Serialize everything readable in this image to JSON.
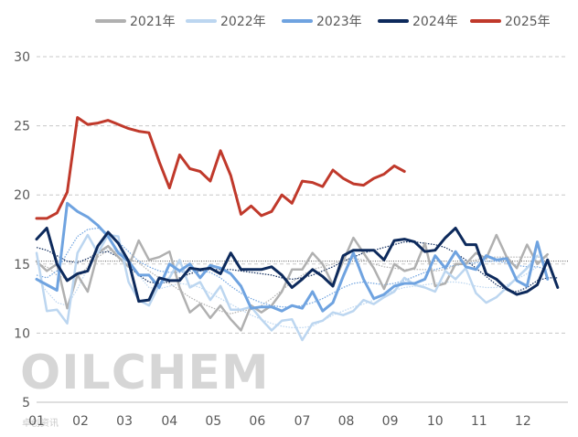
{
  "chart_data": {
    "type": "line",
    "title": "",
    "xlabel": "",
    "ylabel": "",
    "ylim": [
      5,
      30
    ],
    "y_ticks": [
      5,
      10,
      15,
      20,
      25,
      30
    ],
    "x_range": [
      1,
      53
    ],
    "x_ticks": [
      {
        "label": "01",
        "week": 1
      },
      {
        "label": "02",
        "week": 5.3
      },
      {
        "label": "03",
        "week": 9.6
      },
      {
        "label": "04",
        "week": 14
      },
      {
        "label": "05",
        "week": 18.3
      },
      {
        "label": "06",
        "week": 22.6
      },
      {
        "label": "07",
        "week": 27
      },
      {
        "label": "08",
        "week": 31.3
      },
      {
        "label": "09",
        "week": 35.6
      },
      {
        "label": "10",
        "week": 40
      },
      {
        "label": "11",
        "week": 44.3
      },
      {
        "label": "12",
        "week": 48.6
      }
    ],
    "reference_line": 15.2,
    "series": [
      {
        "name": "2021年",
        "color": "#b0b0b0",
        "width": 2.5,
        "values": [
          15.2,
          14.5,
          15.0,
          11.8,
          14.2,
          13.0,
          15.8,
          16.3,
          15.5,
          14.8,
          16.7,
          15.3,
          15.5,
          15.9,
          13.3,
          11.5,
          12.1,
          11.1,
          12.0,
          11.0,
          10.2,
          12.0,
          11.5,
          12.0,
          13.0,
          14.6,
          14.6,
          15.8,
          15.0,
          13.5,
          15.2,
          16.9,
          15.8,
          14.7,
          13.2,
          15.0,
          14.5,
          14.7,
          16.5,
          13.4,
          13.6,
          15.0,
          15.0,
          15.8,
          15.4,
          17.1,
          15.5,
          14.7,
          16.4,
          15.0,
          15.7
        ]
      },
      {
        "name": "2022年",
        "color": "#bcd6f0",
        "width": 2.5,
        "values": [
          15.8,
          11.6,
          11.7,
          10.7,
          15.8,
          17.1,
          15.8,
          17.1,
          17.0,
          13.7,
          12.4,
          12.0,
          13.5,
          14.0,
          15.3,
          13.3,
          13.7,
          12.4,
          13.4,
          11.7,
          11.7,
          11.9,
          11.0,
          10.2,
          10.9,
          11.0,
          9.5,
          10.7,
          10.9,
          11.5,
          11.3,
          11.6,
          12.4,
          12.1,
          12.6,
          13.0,
          14.0,
          13.5,
          13.3,
          13.0,
          14.5,
          13.9,
          14.7,
          12.9,
          12.2,
          12.6,
          13.3,
          14.0,
          14.7,
          15.6
        ]
      },
      {
        "name": "2023年",
        "color": "#6fa3e0",
        "width": 3,
        "values": [
          13.9,
          13.5,
          13.1,
          19.4,
          18.8,
          18.4,
          17.8,
          17.0,
          15.8,
          15.2,
          14.2,
          14.2,
          13.3,
          15.0,
          14.5,
          15.0,
          14.0,
          14.9,
          14.7,
          14.3,
          13.4,
          11.8,
          11.9,
          11.9,
          11.6,
          12.0,
          11.8,
          13.0,
          11.6,
          12.2,
          14.1,
          15.8,
          13.9,
          12.5,
          12.8,
          13.4,
          13.6,
          13.6,
          13.9,
          15.6,
          14.7,
          15.9,
          14.8,
          14.6,
          15.6,
          15.3,
          15.4,
          13.8,
          13.4,
          16.6,
          13.9
        ]
      },
      {
        "name": "2024年",
        "color": "#0d2a5c",
        "width": 3,
        "values": [
          16.8,
          17.6,
          15.0,
          13.8,
          14.3,
          14.5,
          16.3,
          17.3,
          16.5,
          15.2,
          12.3,
          12.4,
          14.0,
          13.8,
          13.8,
          14.7,
          14.6,
          14.7,
          14.3,
          15.8,
          14.6,
          14.6,
          14.6,
          14.8,
          14.2,
          13.3,
          13.9,
          14.6,
          14.1,
          13.4,
          15.6,
          16.0,
          16.0,
          16.0,
          15.3,
          16.7,
          16.8,
          16.6,
          15.9,
          16.0,
          16.9,
          17.6,
          16.4,
          16.4,
          14.3,
          13.9,
          13.2,
          12.8,
          13.0,
          13.5,
          15.3,
          13.3
        ]
      },
      {
        "name": "2025年",
        "color": "#c0392b",
        "width": 3,
        "values": [
          18.3,
          18.3,
          18.7,
          20.2,
          25.6,
          25.1,
          25.2,
          25.4,
          25.1,
          24.8,
          24.6,
          24.5,
          22.4,
          20.5,
          22.9,
          21.9,
          21.7,
          21.0,
          23.2,
          21.4,
          18.6,
          19.2,
          18.5,
          18.8,
          20.0,
          19.4,
          21.0,
          20.9,
          20.6,
          21.8,
          21.2,
          20.8,
          20.7,
          21.2,
          21.5,
          22.1,
          21.7
        ]
      }
    ],
    "trendlines": [
      {
        "color": "#b0b0b0",
        "values": [
          15.0,
          14.8,
          14.2,
          13.9,
          14.0,
          14.8,
          15.5,
          16.0,
          15.9,
          15.4,
          15.1,
          14.5,
          14.0,
          13.6,
          13.1,
          12.6,
          12.2,
          11.9,
          11.6,
          11.4,
          11.6,
          11.7,
          12.0,
          12.5,
          13.1,
          13.7,
          14.2,
          14.6,
          14.8,
          15.0,
          15.3,
          15.4,
          15.3,
          15.0,
          14.8,
          14.7,
          14.6,
          14.6,
          14.6,
          14.5,
          14.6,
          14.9,
          15.1,
          15.3,
          15.5,
          15.5,
          15.5,
          15.5,
          15.5,
          15.5,
          15.5
        ]
      },
      {
        "color": "#bcd6f0",
        "values": [
          14.0,
          13.0,
          12.2,
          12.0,
          13.2,
          14.7,
          15.7,
          16.2,
          16.0,
          15.2,
          14.2,
          13.3,
          13.2,
          13.4,
          13.6,
          13.5,
          13.3,
          12.9,
          12.5,
          12.1,
          11.7,
          11.3,
          11.0,
          10.7,
          10.5,
          10.4,
          10.4,
          10.5,
          10.9,
          11.3,
          11.6,
          11.9,
          12.1,
          12.4,
          12.8,
          13.1,
          13.3,
          13.4,
          13.5,
          13.6,
          13.7,
          13.7,
          13.6,
          13.4,
          13.3,
          13.3,
          13.5,
          13.9,
          14.3,
          14.8
        ]
      },
      {
        "color": "#6fa3e0",
        "values": [
          14.2,
          14.0,
          14.5,
          15.8,
          17.0,
          17.5,
          17.6,
          17.2,
          16.6,
          15.9,
          15.2,
          14.8,
          14.5,
          14.4,
          14.4,
          14.5,
          14.5,
          14.4,
          14.0,
          13.4,
          12.9,
          12.5,
          12.2,
          12.0,
          11.9,
          11.9,
          12.0,
          12.2,
          12.5,
          12.9,
          13.3,
          13.6,
          13.7,
          13.6,
          13.5,
          13.6,
          13.8,
          14.1,
          14.4,
          14.6,
          14.8,
          14.9,
          15.0,
          15.1,
          15.2,
          15.2,
          15.1,
          14.9,
          14.8,
          14.8,
          14.6
        ]
      },
      {
        "color": "#0d2a5c",
        "values": [
          16.2,
          16.0,
          15.6,
          15.2,
          15.1,
          15.4,
          15.8,
          15.9,
          15.5,
          14.8,
          14.2,
          13.7,
          13.6,
          13.7,
          14.0,
          14.3,
          14.5,
          14.6,
          14.6,
          14.6,
          14.5,
          14.4,
          14.3,
          14.2,
          14.0,
          13.9,
          14.0,
          14.2,
          14.5,
          14.8,
          15.2,
          15.5,
          15.8,
          16.0,
          16.2,
          16.4,
          16.6,
          16.6,
          16.5,
          16.4,
          16.2,
          15.8,
          15.3,
          14.7,
          14.1,
          13.5,
          13.1,
          13.0,
          13.3,
          13.8,
          14.0,
          14.0
        ]
      }
    ]
  },
  "watermark": {
    "text": "OILCHEM",
    "sub": "卓创资讯"
  }
}
